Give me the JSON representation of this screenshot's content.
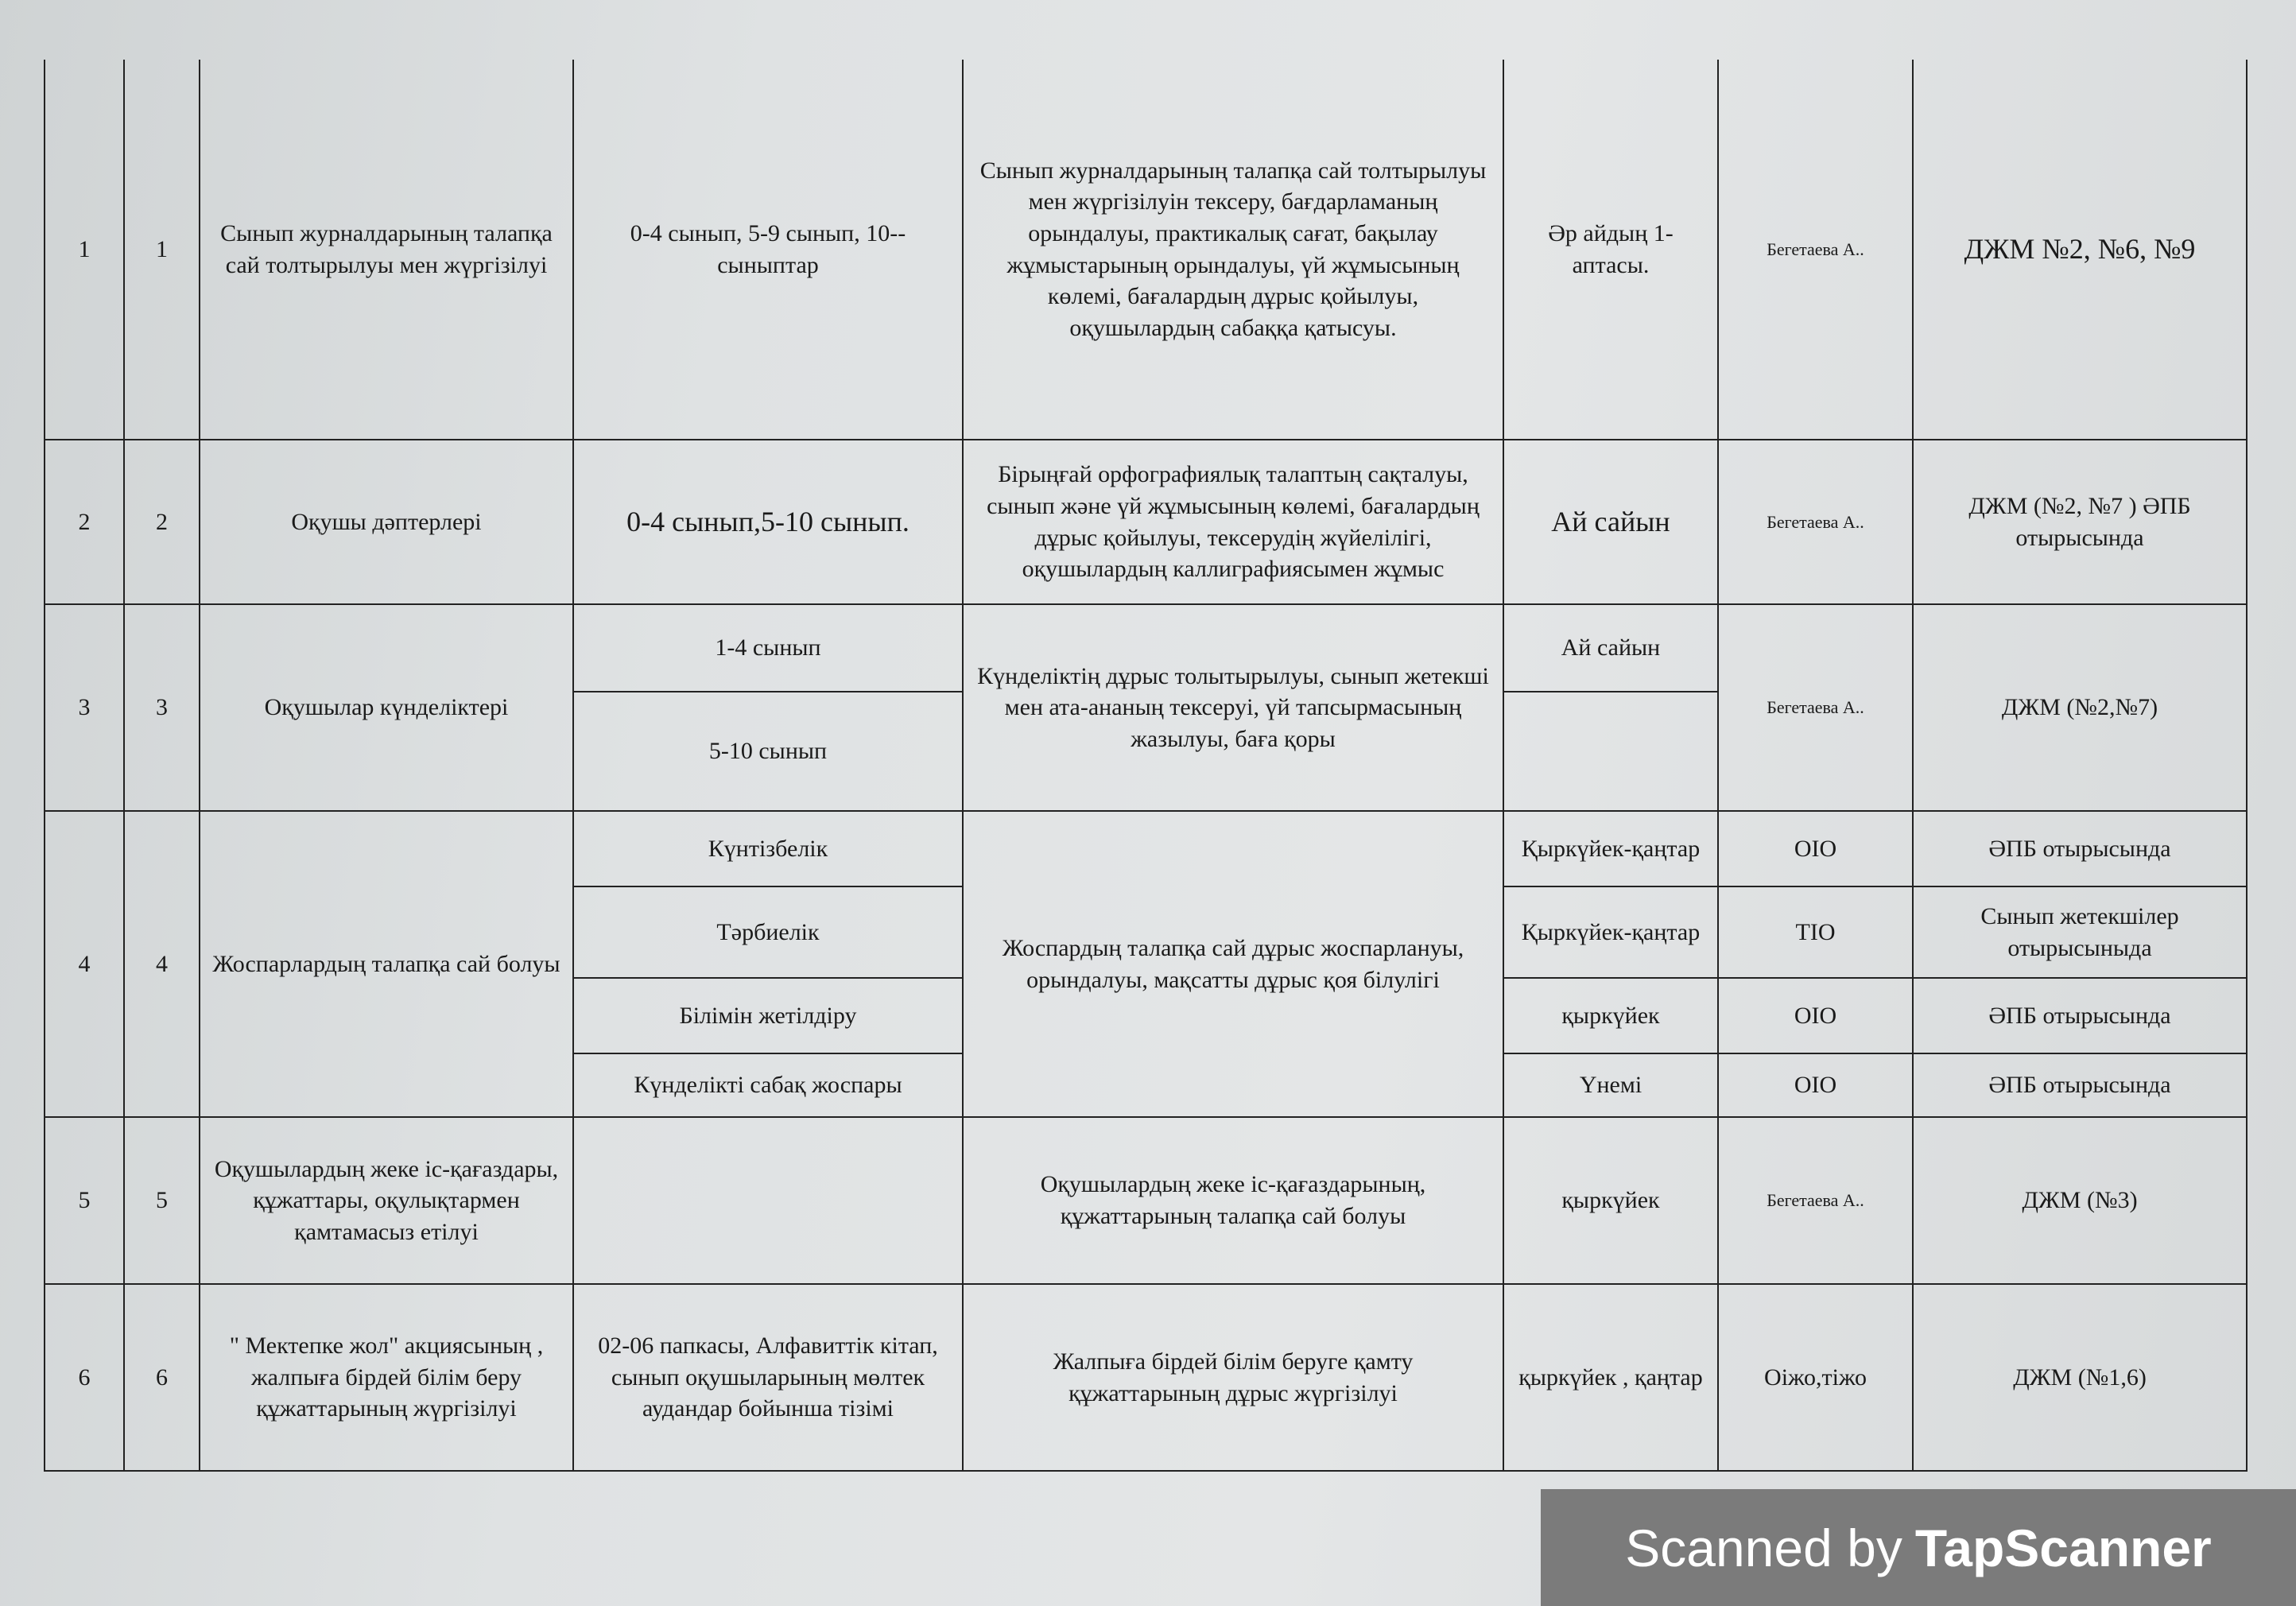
{
  "rows": [
    {
      "n1": "1",
      "n2": "1",
      "item": "Сынып журналдарының талапқа сай толтырылуы мен жүргізілуі",
      "scope": "0-4 сынып,  5-9 сынып,   10--сыныптар",
      "content": "Сынып журналдарының талапқа сай толтырылуы мен жүргізілуін  тексеру, бағдарламаның орындалуы, практикалық сағат, бақылау жұмыстарының орындалуы, үй жұмысының көлемі, бағалардың дұрыс қойылуы, оқушылардың сабаққа қатысуы.",
      "period": "Әр айдың 1-аптасы.",
      "responsible": "Бегетаева А..",
      "result": "ДЖМ №2, №6, №9"
    },
    {
      "n1": "2",
      "n2": "2",
      "item": "Оқушы  дәптерлері",
      "scope": "0-4 сынып,5-10 сынып.",
      "content": "Бірыңғай орфографиялық талаптың сақталуы, сынып және үй жұмысының көлемі, бағалардың дұрыс қойылуы, тексерудің жүйелілігі, оқушылардың каллиграфиясымен жұмыс",
      "period": "Ай сайын",
      "responsible": "Бегетаева А..",
      "result": "ДЖМ (№2, №7 ) ӘПБ отырысында"
    },
    {
      "n1": "3",
      "n2": "3",
      "item": "Оқушылар күнделіктері",
      "scope": [
        "1-4 сынып",
        "5-10 сынып"
      ],
      "content": "Күнделіктің дұрыс толытырылуы, сынып жетекші мен ата-ананың тексеруі, үй тапсырмасының жазылуы, баға қоры",
      "period": [
        "Ай сайын",
        ""
      ],
      "responsible": "Бегетаева А..",
      "result": "ДЖМ   (№2,№7)"
    },
    {
      "n1": "4",
      "n2": "4",
      "item": "Жоспарлардың  талапқа сай болуы",
      "content": "Жоспардың талапқа сай дұрыс жоспарлануы, орындалуы, мақсатты дұрыс қоя білулігі",
      "sub": [
        {
          "scope": "Күнтізбелік",
          "period": "Қыркүйек-қаңтар",
          "responsible": "ОІО",
          "result": "ӘПБ отырысында"
        },
        {
          "scope": "Тәрбиелік",
          "period": "Қыркүйек-қаңтар",
          "responsible": "ТІО",
          "result": "Сынып жетекшілер отырысыныда"
        },
        {
          "scope": "Білімін жетілдіру",
          "period": "қыркүйек",
          "responsible": "ОІО",
          "result": "ӘПБ отырысында"
        },
        {
          "scope": "Күнделікті сабақ жоспары",
          "period": "Үнемі",
          "responsible": "ОІО",
          "result": "ӘПБ отырысында"
        }
      ]
    },
    {
      "n1": "5",
      "n2": "5",
      "item": "Оқушылардың жеке іс-қағаздары, құжаттары, оқулықтармен қамтамасыз етілуі",
      "scope": "",
      "content": "Оқушылардың жеке  іс-қағаздарының, құжаттарының талапқа сай болуы",
      "period": "қыркүйек",
      "responsible": "Бегетаева А..",
      "result": "ДЖМ  (№3)"
    },
    {
      "n1": "6",
      "n2": "6",
      "item": "\" Мектепке жол\" акциясының , жалпыға бірдей білім беру құжаттарының жүргізілуі",
      "scope": "02-06 папкасы, Алфавиттік кітап, сынып оқушыларының мөлтек аудандар бойынша тізімі",
      "content": "Жалпыға бірдей білім беруге қамту құжаттарының дұрыс жүргізілуі",
      "period": "қыркүйек , қаңтар",
      "responsible": "Оіжо,тіжо",
      "result": "ДЖМ (№1,6)"
    }
  ],
  "watermark": {
    "prefix": "Scanned by",
    "brand": "TapScanner"
  }
}
